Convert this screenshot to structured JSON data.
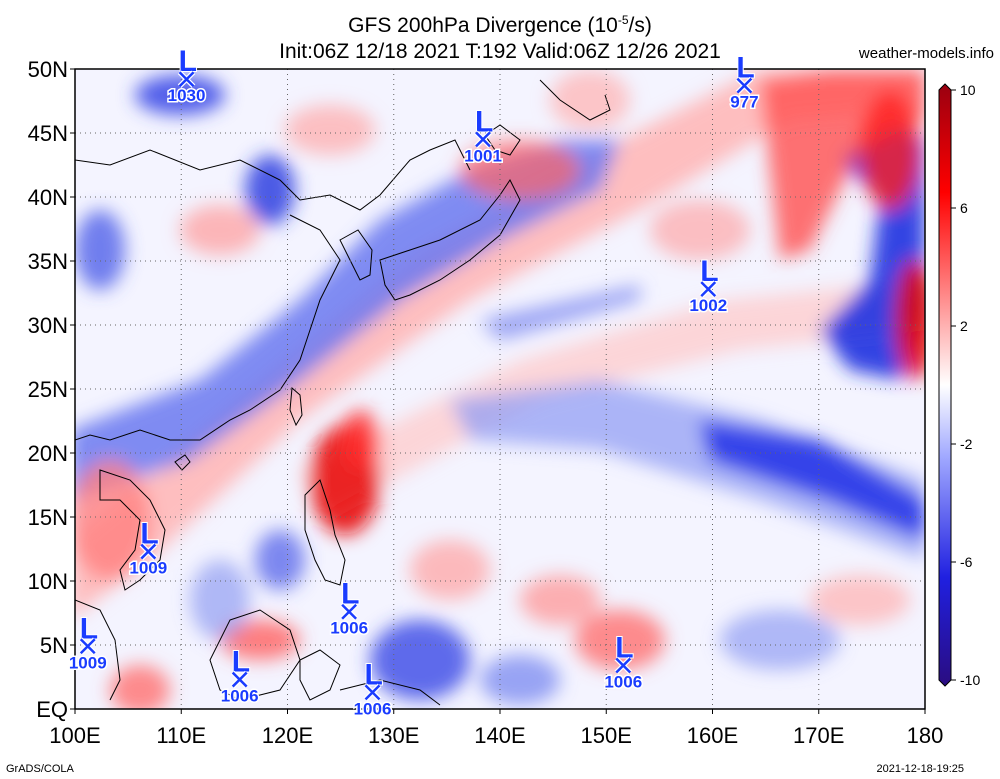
{
  "title": {
    "line1_prefix": "GFS 200hPa Divergence (10",
    "line1_exp": "-5",
    "line1_suffix": "/s)",
    "line2": "Init:06Z 12/18 2021 T:192 Valid:06Z 12/26 2021"
  },
  "site": "weather-models.info",
  "footer": {
    "left": "GrADS/COLA",
    "right": "2021-12-18-19:25"
  },
  "map": {
    "lon_range": [
      100,
      180
    ],
    "lat_range": [
      0,
      50
    ],
    "lon_ticks": [
      "100E",
      "110E",
      "120E",
      "130E",
      "140E",
      "150E",
      "160E",
      "170E",
      "180"
    ],
    "lat_ticks": [
      "EQ",
      "5N",
      "10N",
      "15N",
      "20N",
      "25N",
      "30N",
      "35N",
      "40N",
      "45N",
      "50N"
    ],
    "gridlines": "dotted",
    "colorbar": {
      "labels": [
        "10",
        "6",
        "2",
        "-2",
        "-6",
        "-10"
      ],
      "high_color": "#c8001e",
      "low_color": "#1e14b4"
    },
    "low_label_color": "#1a3cff",
    "pressure_systems": [
      {
        "label": "1030",
        "lon": 110.5,
        "lat": 49.2
      },
      {
        "label": "1001",
        "lon": 138.4,
        "lat": 44.5
      },
      {
        "label": "977",
        "lon": 163,
        "lat": 48.7
      },
      {
        "label": "1002",
        "lon": 159.6,
        "lat": 32.8
      },
      {
        "label": "1009",
        "lon": 106.9,
        "lat": 12.3
      },
      {
        "label": "1009",
        "lon": 101.2,
        "lat": 4.9
      },
      {
        "label": "1006",
        "lon": 125.8,
        "lat": 7.6
      },
      {
        "label": "1006",
        "lon": 115.5,
        "lat": 2.3
      },
      {
        "label": "1006",
        "lon": 128,
        "lat": 1.3
      },
      {
        "label": "1006",
        "lon": 151.6,
        "lat": 3.4
      }
    ]
  }
}
